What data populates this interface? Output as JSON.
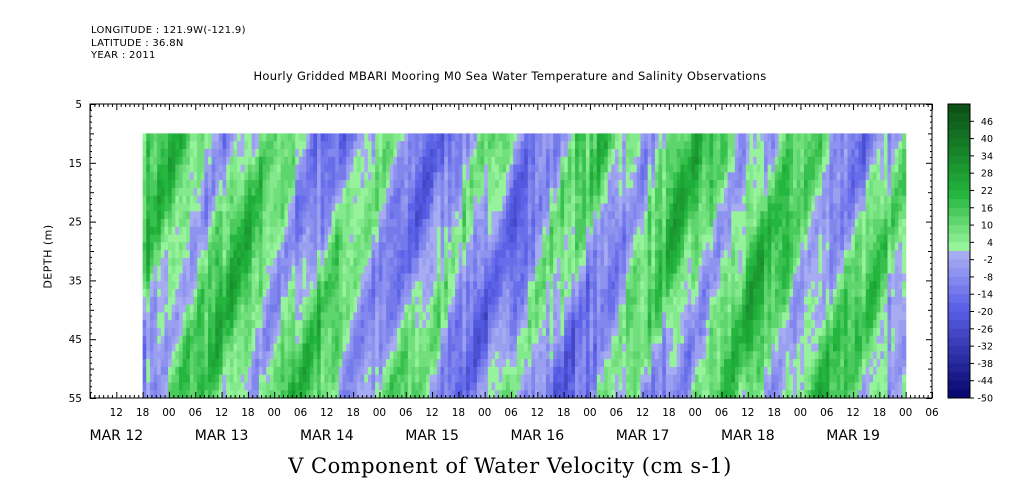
{
  "header": {
    "longitude": "LONGITUDE : 121.9W(-121.9)",
    "latitude": "LATITUDE : 36.8N",
    "year": "YEAR : 2011"
  },
  "chart_data": {
    "type": "heatmap",
    "title": "Hourly Gridded MBARI Mooring M0 Sea Water Temperature and Salinity Observations",
    "xlabel": "V Component of Water Velocity (cm s-1)",
    "ylabel": "DEPTH (m)",
    "y_ticks": [
      5,
      15,
      25,
      35,
      45,
      55
    ],
    "ylim": [
      55,
      5
    ],
    "y_reversed": true,
    "x_hour_ticks": [
      "12",
      "18",
      "00",
      "06",
      "12",
      "18",
      "00",
      "06",
      "12",
      "18",
      "00",
      "06",
      "12",
      "18",
      "00",
      "06",
      "12",
      "18",
      "00",
      "06",
      "12",
      "18",
      "00",
      "06",
      "12",
      "18",
      "00",
      "06",
      "12",
      "18",
      "00",
      "06"
    ],
    "x_day_labels": [
      "MAR 12",
      "MAR 13",
      "MAR 14",
      "MAR 15",
      "MAR 16",
      "MAR 17",
      "MAR 18",
      "MAR 19"
    ],
    "data_start_hour": 18,
    "data_end_hour": 192,
    "data_top_depth": 10,
    "colorbar": {
      "ticks": [
        46,
        40,
        34,
        28,
        22,
        16,
        10,
        4,
        -2,
        -8,
        -14,
        -20,
        -26,
        -32,
        -38,
        -44,
        -50
      ],
      "range": [
        -50,
        52
      ],
      "step": 3,
      "colors": {
        "deep_green": "#0b4a14",
        "mid_green": "#22b43c",
        "light_green": "#99f59e",
        "light_blue": "#a8adf2",
        "mid_blue": "#5a60e8",
        "deep_blue": "#080870"
      }
    },
    "field_description": "alternating diagonal bands of weak northward (green) and southward (blue) velocity, roughly -20 to +25 cm/s"
  }
}
